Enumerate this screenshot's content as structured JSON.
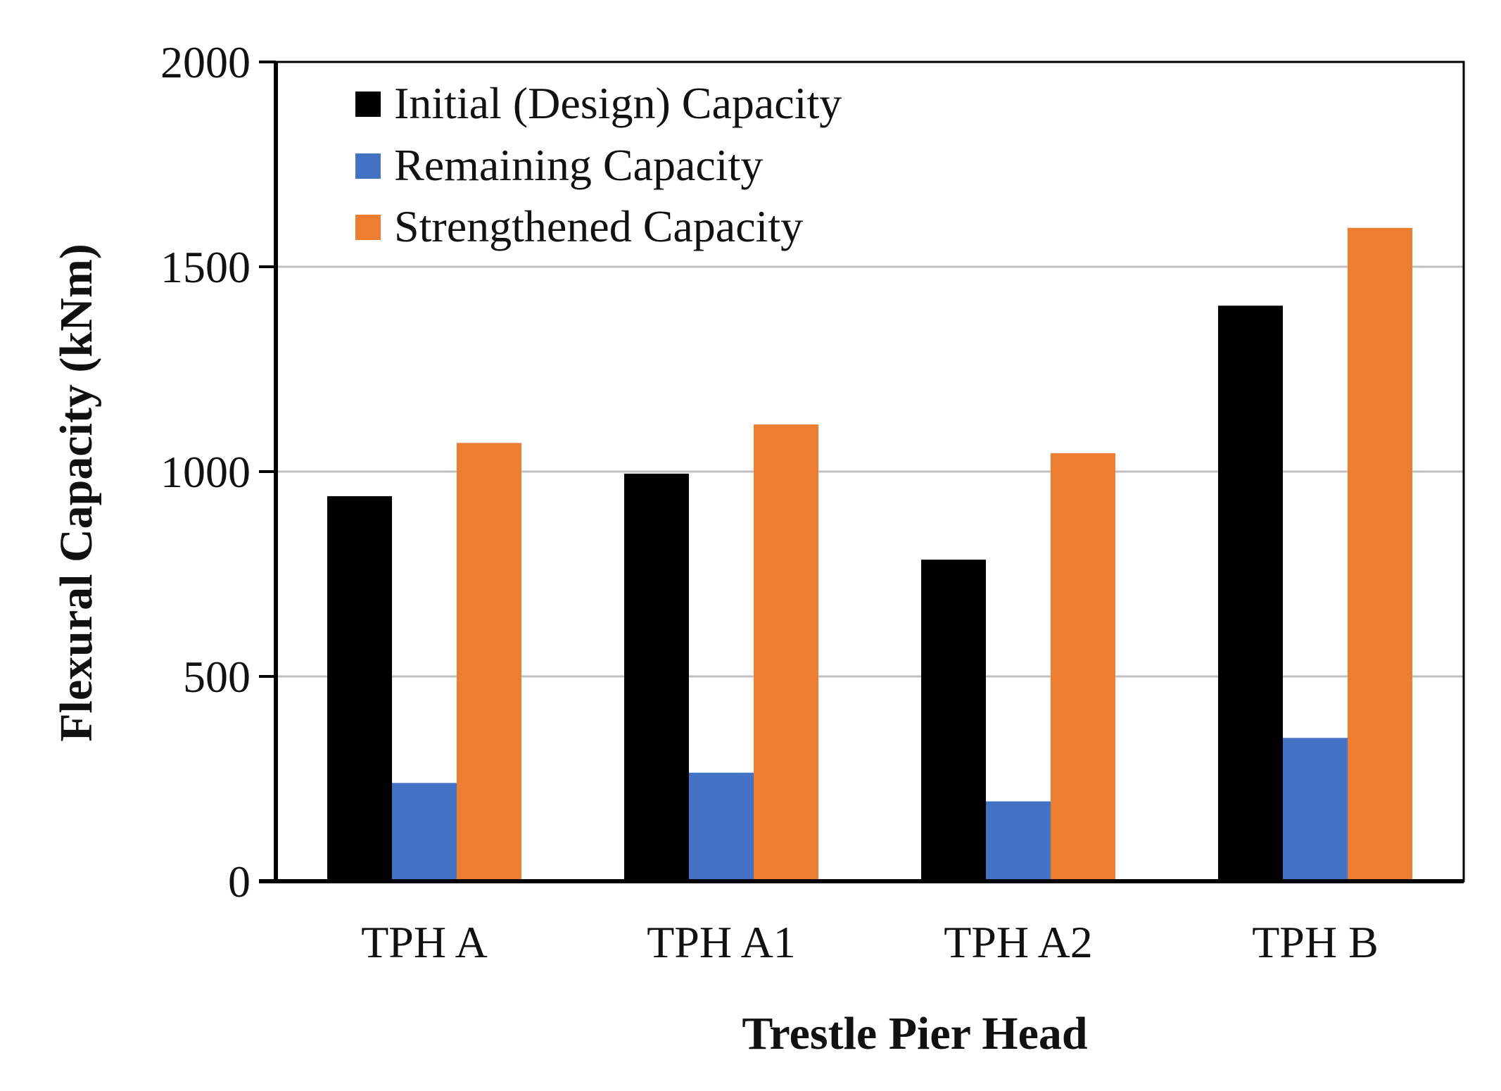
{
  "chart_data": {
    "type": "bar",
    "title": "",
    "xlabel": "Trestle Pier Head",
    "ylabel": "Flexural Capacity (kNm)",
    "ylim": [
      0,
      2000
    ],
    "yticks": [
      0,
      500,
      1000,
      1500,
      2000
    ],
    "categories": [
      "TPH A",
      "TPH A1",
      "TPH A2",
      "TPH B"
    ],
    "series": [
      {
        "name": "Initial (Design) Capacity",
        "color": "#000000",
        "values": [
          940,
          995,
          785,
          1405
        ]
      },
      {
        "name": "Remaining Capacity",
        "color": "#4472C4",
        "values": [
          240,
          265,
          195,
          350
        ]
      },
      {
        "name": "Strengthened Capacity",
        "color": "#ED7D31",
        "values": [
          1070,
          1115,
          1045,
          1595
        ]
      }
    ],
    "grid": true,
    "legend_position": "top-left"
  }
}
